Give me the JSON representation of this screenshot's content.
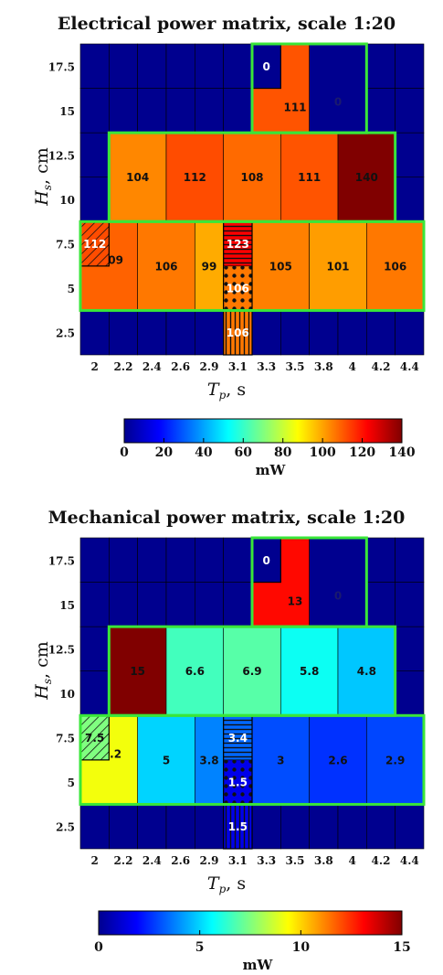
{
  "chart_data": [
    {
      "type": "heatmap",
      "title": "Electrical power matrix, scale 1:20",
      "xlabel": "T",
      "xlabel_sub": "p",
      "xlabel_unit": ", s",
      "ylabel": "H",
      "ylabel_sub": "s",
      "ylabel_unit": ", cm",
      "x_ticks": [
        "2",
        "2.2",
        "2.4",
        "2.6",
        "2.9",
        "3.1",
        "3.3",
        "3.5",
        "3.8",
        "4",
        "4.2",
        "4.4"
      ],
      "y_ticks": [
        "2.5",
        "5",
        "7.5",
        "10",
        "12.5",
        "15",
        "17.5"
      ],
      "x_range": [
        0,
        12
      ],
      "y_range": [
        1.25,
        18.75
      ],
      "colorbar": {
        "min": 0,
        "max": 140,
        "ticks": [
          "0",
          "20",
          "40",
          "60",
          "80",
          "100",
          "120",
          "140"
        ],
        "unit": "mW"
      },
      "cells": [
        {
          "x0": 6,
          "x1": 7,
          "y0": 16.25,
          "y1": 18.75,
          "value": 0,
          "label": "0",
          "label_color": "#ffffff",
          "lx": 6.5,
          "ly": 17.5
        },
        {
          "x0": 6,
          "x1": 8,
          "y0": 13.75,
          "y1": 18.75,
          "value": 111,
          "label": "111",
          "label_color": "#111111",
          "lx": 7.5,
          "ly": 15.2,
          "under": true
        },
        {
          "x0": 8,
          "x1": 10,
          "y0": 13.75,
          "y1": 18.75,
          "value": 0,
          "label": "0",
          "label_color": "#1a1a6e",
          "lx": 9,
          "ly": 15.5
        },
        {
          "x0": 1,
          "x1": 3,
          "y0": 8.75,
          "y1": 13.75,
          "value": 104,
          "label": "104",
          "label_color": "#111111"
        },
        {
          "x0": 3,
          "x1": 5,
          "y0": 8.75,
          "y1": 13.75,
          "value": 112,
          "label": "112",
          "label_color": "#111111"
        },
        {
          "x0": 5,
          "x1": 7,
          "y0": 8.75,
          "y1": 13.75,
          "value": 108,
          "label": "108",
          "label_color": "#111111"
        },
        {
          "x0": 7,
          "x1": 9,
          "y0": 8.75,
          "y1": 13.75,
          "value": 111,
          "label": "111",
          "label_color": "#111111"
        },
        {
          "x0": 9,
          "x1": 11,
          "y0": 8.75,
          "y1": 13.75,
          "value": 140,
          "label": "140",
          "label_color": "#111111"
        },
        {
          "x0": 0,
          "x1": 2,
          "y0": 3.75,
          "y1": 8.75,
          "value": 109,
          "label": "109",
          "label_color": "#111111",
          "lx": 1.1,
          "ly": 6.6,
          "under": true
        },
        {
          "x0": 2,
          "x1": 4,
          "y0": 3.75,
          "y1": 8.75,
          "value": 106,
          "label": "106",
          "label_color": "#111111"
        },
        {
          "x0": 4,
          "x1": 5,
          "y0": 3.75,
          "y1": 8.75,
          "value": 99,
          "label": "99",
          "label_color": "#111111"
        },
        {
          "x0": 5,
          "x1": 6,
          "y0": 3.75,
          "y1": 8.75,
          "value": 100,
          "label": "",
          "label_color": "#111111",
          "under": true
        },
        {
          "x0": 6,
          "x1": 8,
          "y0": 3.75,
          "y1": 8.75,
          "value": 105,
          "label": "105",
          "label_color": "#111111"
        },
        {
          "x0": 8,
          "x1": 10,
          "y0": 3.75,
          "y1": 8.75,
          "value": 101,
          "label": "101",
          "label_color": "#111111"
        },
        {
          "x0": 10,
          "x1": 12,
          "y0": 3.75,
          "y1": 8.75,
          "value": 106,
          "label": "106",
          "label_color": "#111111"
        },
        {
          "x0": 0,
          "x1": 1,
          "y0": 6.25,
          "y1": 8.75,
          "value": 112,
          "label": "112",
          "label_color": "#ffffff",
          "pattern": "diag",
          "lx": 0.5,
          "ly": 7.5
        },
        {
          "x0": 5,
          "x1": 6,
          "y0": 6.25,
          "y1": 8.75,
          "value": 123,
          "label": "123",
          "label_color": "#ffffff",
          "pattern": "hlines"
        },
        {
          "x0": 5,
          "x1": 6,
          "y0": 3.75,
          "y1": 6.25,
          "value": 106,
          "label": "106",
          "label_color": "#ffffff",
          "pattern": "dots"
        },
        {
          "x0": 5,
          "x1": 6,
          "y0": 1.25,
          "y1": 3.75,
          "value": 106,
          "label": "106",
          "label_color": "#ffffff",
          "pattern": "vlines"
        }
      ],
      "outlines": [
        {
          "x0": 6,
          "x1": 10,
          "y0": 13.75,
          "y1": 18.75
        },
        {
          "x0": 1,
          "x1": 11,
          "y0": 8.75,
          "y1": 13.75
        },
        {
          "x0": 0,
          "x1": 12,
          "y0": 3.75,
          "y1": 8.75
        }
      ],
      "stroke_outlines": [
        {
          "x0": 0,
          "x1": 1,
          "y0": 6.25,
          "y1": 8.75
        },
        {
          "x0": 5,
          "x1": 6,
          "y0": 1.25,
          "y1": 8.75
        },
        {
          "x0": 6,
          "x1": 7,
          "y0": 16.25,
          "y1": 18.75
        }
      ]
    },
    {
      "type": "heatmap",
      "title": "Mechanical power matrix, scale 1:20",
      "xlabel": "T",
      "xlabel_sub": "p",
      "xlabel_unit": ", s",
      "ylabel": "H",
      "ylabel_sub": "s",
      "ylabel_unit": ", cm",
      "x_ticks": [
        "2",
        "2.2",
        "2.4",
        "2.6",
        "2.9",
        "3.1",
        "3.3",
        "3.5",
        "3.8",
        "4",
        "4.2",
        "4.4"
      ],
      "y_ticks": [
        "2.5",
        "5",
        "7.5",
        "10",
        "12.5",
        "15",
        "17.5"
      ],
      "x_range": [
        0,
        12
      ],
      "y_range": [
        1.25,
        18.75
      ],
      "colorbar": {
        "min": 0,
        "max": 15,
        "ticks": [
          "0",
          "5",
          "10",
          "15"
        ],
        "unit": "mW"
      },
      "cells": [
        {
          "x0": 6,
          "x1": 7,
          "y0": 16.25,
          "y1": 18.75,
          "value": 0,
          "label": "0",
          "label_color": "#ffffff",
          "lx": 6.5,
          "ly": 17.5
        },
        {
          "x0": 6,
          "x1": 8,
          "y0": 13.75,
          "y1": 18.75,
          "value": 13,
          "label": "13",
          "label_color": "#111111",
          "lx": 7.5,
          "ly": 15.2,
          "under": true
        },
        {
          "x0": 8,
          "x1": 10,
          "y0": 13.75,
          "y1": 18.75,
          "value": 0,
          "label": "0",
          "label_color": "#1a1a6e",
          "lx": 9,
          "ly": 15.5
        },
        {
          "x0": 1,
          "x1": 3,
          "y0": 8.75,
          "y1": 13.75,
          "value": 15,
          "label": "15",
          "label_color": "#111111"
        },
        {
          "x0": 3,
          "x1": 5,
          "y0": 8.75,
          "y1": 13.75,
          "value": 6.6,
          "label": "6.6",
          "label_color": "#111111"
        },
        {
          "x0": 5,
          "x1": 7,
          "y0": 8.75,
          "y1": 13.75,
          "value": 6.9,
          "label": "6.9",
          "label_color": "#111111"
        },
        {
          "x0": 7,
          "x1": 9,
          "y0": 8.75,
          "y1": 13.75,
          "value": 5.8,
          "label": "5.8",
          "label_color": "#111111"
        },
        {
          "x0": 9,
          "x1": 11,
          "y0": 8.75,
          "y1": 13.75,
          "value": 4.8,
          "label": "4.8",
          "label_color": "#111111"
        },
        {
          "x0": 0,
          "x1": 2,
          "y0": 3.75,
          "y1": 8.75,
          "value": 9.2,
          "label": "9.2",
          "label_color": "#111111",
          "lx": 1.1,
          "ly": 6.6,
          "under": true
        },
        {
          "x0": 2,
          "x1": 4,
          "y0": 3.75,
          "y1": 8.75,
          "value": 5,
          "label": "5",
          "label_color": "#111111"
        },
        {
          "x0": 4,
          "x1": 5,
          "y0": 3.75,
          "y1": 8.75,
          "value": 3.8,
          "label": "3.8",
          "label_color": "#111111"
        },
        {
          "x0": 5,
          "x1": 6,
          "y0": 3.75,
          "y1": 8.75,
          "value": 2,
          "label": "",
          "label_color": "#111111",
          "under": true
        },
        {
          "x0": 6,
          "x1": 8,
          "y0": 3.75,
          "y1": 8.75,
          "value": 3,
          "label": "3",
          "label_color": "#111111"
        },
        {
          "x0": 8,
          "x1": 10,
          "y0": 3.75,
          "y1": 8.75,
          "value": 2.6,
          "label": "2.6",
          "label_color": "#111111"
        },
        {
          "x0": 10,
          "x1": 12,
          "y0": 3.75,
          "y1": 8.75,
          "value": 2.9,
          "label": "2.9",
          "label_color": "#111111"
        },
        {
          "x0": 0,
          "x1": 1,
          "y0": 6.25,
          "y1": 8.75,
          "value": 7.5,
          "label": "7.5",
          "label_color": "#111111",
          "pattern": "diag",
          "lx": 0.5,
          "ly": 7.5
        },
        {
          "x0": 5,
          "x1": 6,
          "y0": 6.25,
          "y1": 8.75,
          "value": 3.4,
          "label": "3.4",
          "label_color": "#ffffff",
          "pattern": "hlines"
        },
        {
          "x0": 5,
          "x1": 6,
          "y0": 3.75,
          "y1": 6.25,
          "value": 1.5,
          "label": "1.5",
          "label_color": "#ffffff",
          "pattern": "dots"
        },
        {
          "x0": 5,
          "x1": 6,
          "y0": 1.25,
          "y1": 3.75,
          "value": 1.5,
          "label": "1.5",
          "label_color": "#ffffff",
          "pattern": "vlines"
        }
      ],
      "outlines": [
        {
          "x0": 6,
          "x1": 10,
          "y0": 13.75,
          "y1": 18.75
        },
        {
          "x0": 1,
          "x1": 11,
          "y0": 8.75,
          "y1": 13.75
        },
        {
          "x0": 0,
          "x1": 12,
          "y0": 3.75,
          "y1": 8.75
        }
      ],
      "stroke_outlines": [
        {
          "x0": 0,
          "x1": 1,
          "y0": 6.25,
          "y1": 8.75
        },
        {
          "x0": 5,
          "x1": 6,
          "y0": 1.25,
          "y1": 8.75
        },
        {
          "x0": 6,
          "x1": 7,
          "y0": 16.25,
          "y1": 18.75
        }
      ]
    }
  ],
  "colormap": "jet",
  "background_cell_color": "#00008f",
  "outline_color": "#39e639"
}
